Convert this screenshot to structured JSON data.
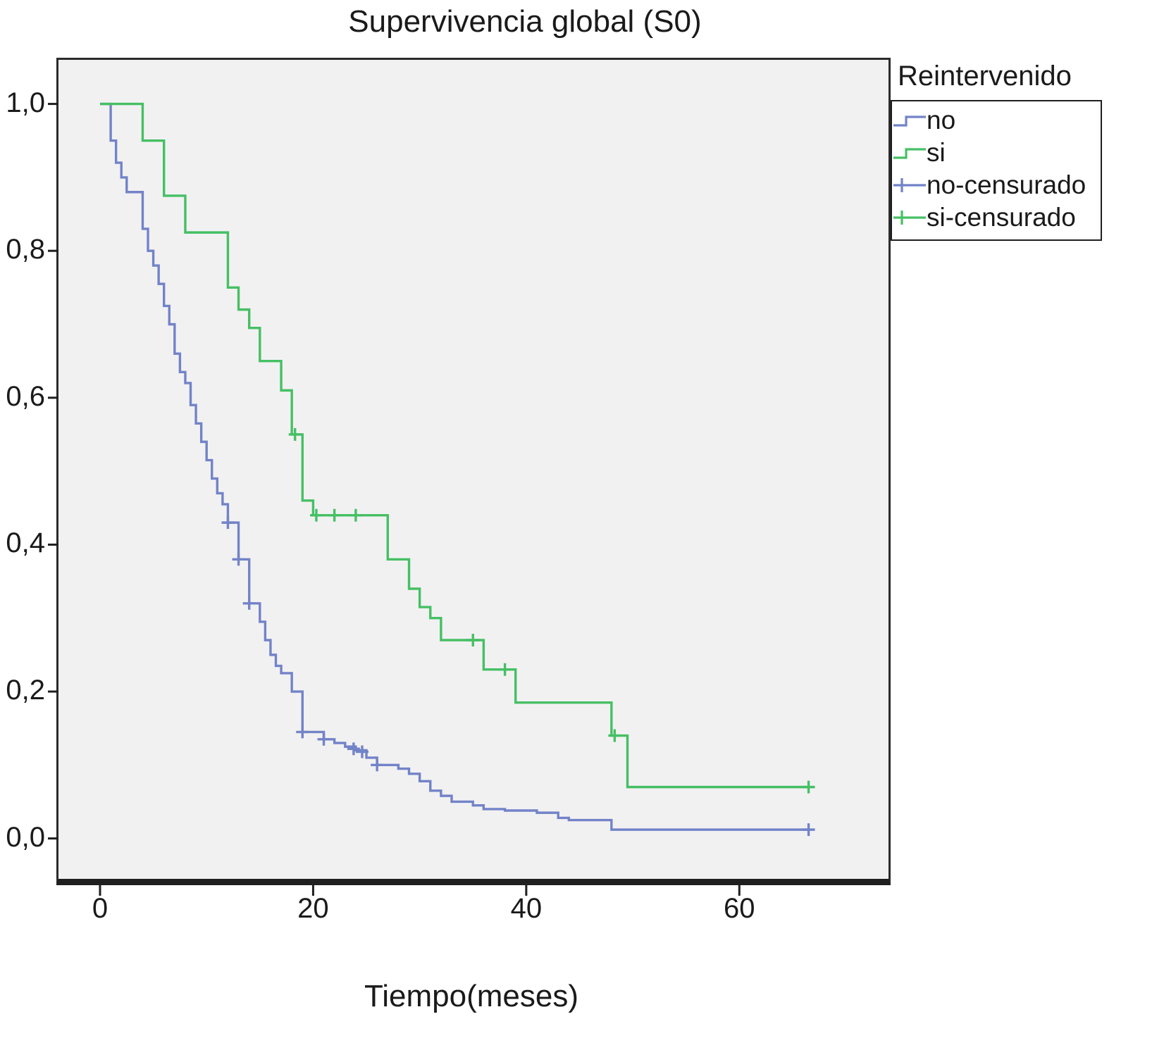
{
  "chart_data": {
    "type": "line",
    "subtype": "kaplan-meier-step",
    "title": "Supervivencia global (S0)",
    "xlabel": "Tiempo(meses)",
    "ylabel": "",
    "xlim": [
      -3.9,
      74.0
    ],
    "ylim": [
      -0.055,
      1.06
    ],
    "grid": false,
    "legend_position": "right-outside",
    "x_ticks": [
      {
        "v": 0,
        "label": "0"
      },
      {
        "v": 20,
        "label": "20"
      },
      {
        "v": 40,
        "label": "40"
      },
      {
        "v": 60,
        "label": "60"
      }
    ],
    "y_ticks": [
      {
        "v": 0.0,
        "label": "0,0"
      },
      {
        "v": 0.2,
        "label": "0,2"
      },
      {
        "v": 0.4,
        "label": "0,4"
      },
      {
        "v": 0.6,
        "label": "0,6"
      },
      {
        "v": 0.8,
        "label": "0,8"
      },
      {
        "v": 1.0,
        "label": "1,0"
      }
    ],
    "series": [
      {
        "name": "no",
        "color": "#7283c8",
        "points": [
          [
            0,
            1.0
          ],
          [
            1,
            0.95
          ],
          [
            1.5,
            0.92
          ],
          [
            2,
            0.9
          ],
          [
            2.5,
            0.88
          ],
          [
            4,
            0.83
          ],
          [
            4.5,
            0.8
          ],
          [
            5,
            0.78
          ],
          [
            5.5,
            0.755
          ],
          [
            6,
            0.725
          ],
          [
            6.5,
            0.7
          ],
          [
            7,
            0.66
          ],
          [
            7.5,
            0.635
          ],
          [
            8,
            0.62
          ],
          [
            8.5,
            0.59
          ],
          [
            9,
            0.565
          ],
          [
            9.5,
            0.54
          ],
          [
            10,
            0.515
          ],
          [
            10.5,
            0.49
          ],
          [
            11,
            0.47
          ],
          [
            11.5,
            0.455
          ],
          [
            12,
            0.43
          ],
          [
            13,
            0.38
          ],
          [
            14,
            0.32
          ],
          [
            15,
            0.295
          ],
          [
            15.5,
            0.27
          ],
          [
            16,
            0.25
          ],
          [
            16.5,
            0.235
          ],
          [
            17,
            0.225
          ],
          [
            18,
            0.2
          ],
          [
            19,
            0.145
          ],
          [
            21,
            0.135
          ],
          [
            22,
            0.13
          ],
          [
            23,
            0.125
          ],
          [
            24,
            0.12
          ],
          [
            25,
            0.11
          ],
          [
            26,
            0.1
          ],
          [
            28,
            0.095
          ],
          [
            29,
            0.088
          ],
          [
            30,
            0.078
          ],
          [
            31,
            0.065
          ],
          [
            32,
            0.058
          ],
          [
            33,
            0.05
          ],
          [
            35,
            0.045
          ],
          [
            36,
            0.04
          ],
          [
            38,
            0.038
          ],
          [
            41,
            0.035
          ],
          [
            43,
            0.028
          ],
          [
            44,
            0.025
          ],
          [
            48,
            0.012
          ],
          [
            66.5,
            0.012
          ]
        ],
        "censors": [
          [
            12,
            0.43
          ],
          [
            13,
            0.38
          ],
          [
            14,
            0.32
          ],
          [
            19,
            0.145
          ],
          [
            21,
            0.135
          ],
          [
            23.8,
            0.122
          ],
          [
            24.6,
            0.118
          ],
          [
            26,
            0.1
          ],
          [
            66.5,
            0.012
          ]
        ]
      },
      {
        "name": "si",
        "color": "#45c064",
        "points": [
          [
            0,
            1.0
          ],
          [
            4,
            0.95
          ],
          [
            6,
            0.875
          ],
          [
            8,
            0.825
          ],
          [
            12,
            0.75
          ],
          [
            13,
            0.72
          ],
          [
            14,
            0.695
          ],
          [
            15,
            0.65
          ],
          [
            17,
            0.61
          ],
          [
            18,
            0.55
          ],
          [
            19,
            0.46
          ],
          [
            20,
            0.44
          ],
          [
            27,
            0.38
          ],
          [
            29,
            0.34
          ],
          [
            30,
            0.315
          ],
          [
            31,
            0.3
          ],
          [
            32,
            0.27
          ],
          [
            36,
            0.23
          ],
          [
            39,
            0.185
          ],
          [
            48,
            0.14
          ],
          [
            49.5,
            0.07
          ],
          [
            66.5,
            0.07
          ]
        ],
        "censors": [
          [
            18.3,
            0.55
          ],
          [
            20.3,
            0.44
          ],
          [
            22,
            0.44
          ],
          [
            24,
            0.44
          ],
          [
            35,
            0.27
          ],
          [
            38,
            0.23
          ],
          [
            48.3,
            0.14
          ],
          [
            66.5,
            0.07
          ]
        ]
      }
    ]
  },
  "legend": {
    "title": "Reintervenido",
    "items": [
      {
        "key": "no",
        "label": "no",
        "color": "#7283c8",
        "censored": false
      },
      {
        "key": "si",
        "label": "si",
        "color": "#45c064",
        "censored": false
      },
      {
        "key": "no-censored",
        "label": "no-censurado",
        "color": "#7283c8",
        "censored": true
      },
      {
        "key": "si-censored",
        "label": "si-censurado",
        "color": "#45c064",
        "censored": true
      }
    ]
  }
}
